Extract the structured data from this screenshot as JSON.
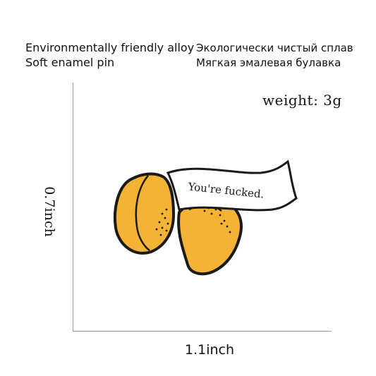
{
  "description": {
    "en_line1": "Environmentally friendly alloy",
    "en_line2": "Soft enamel pin",
    "ru_line1": "Экологически чистый сплав",
    "ru_line2": "Мягкая эмалевая булавка"
  },
  "weight_label": "weight: 3g",
  "dimensions": {
    "width": "1.1inch",
    "height": "0.7inch"
  },
  "pin": {
    "banner_text": "You're fucked.",
    "colors": {
      "cookie_fill": "#f5b335",
      "cookie_shadow": "#e89a1c",
      "outline": "#1a1a1a",
      "banner_fill": "#ffffff"
    }
  }
}
